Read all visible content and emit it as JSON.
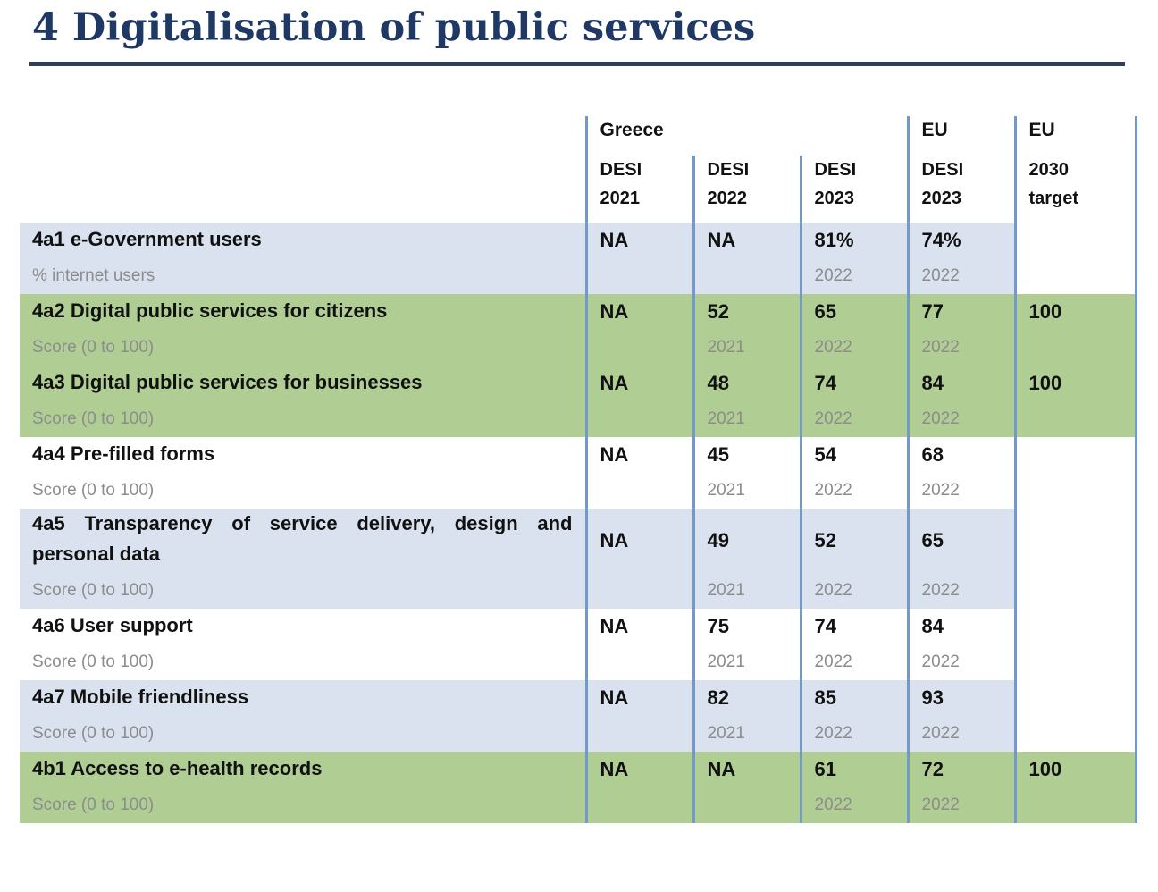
{
  "page": {
    "title": "4 Digitalisation of public services"
  },
  "table": {
    "group_headers": {
      "greece": "Greece",
      "eu": "EU",
      "eu_target": "EU"
    },
    "column_headers": [
      {
        "line1": "DESI",
        "line2": "2021"
      },
      {
        "line1": "DESI",
        "line2": "2022"
      },
      {
        "line1": "DESI",
        "line2": "2023"
      },
      {
        "line1": "DESI",
        "line2": "2023"
      },
      {
        "line1": "2030",
        "line2": "target"
      }
    ],
    "rows": [
      {
        "indicator": "4a1 e-Government users",
        "unit": "% internet users",
        "values": [
          "NA",
          "NA",
          "81%",
          "74%",
          ""
        ],
        "years": [
          "",
          "",
          "2022",
          "2022",
          ""
        ]
      },
      {
        "indicator": "4a2 Digital public services for citizens",
        "unit": "Score (0 to 100)",
        "values": [
          "NA",
          "52",
          "65",
          "77",
          "100"
        ],
        "years": [
          "",
          "2021",
          "2022",
          "2022",
          ""
        ]
      },
      {
        "indicator": "4a3 Digital public services for businesses",
        "unit": "Score (0 to 100)",
        "values": [
          "NA",
          "48",
          "74",
          "84",
          "100"
        ],
        "years": [
          "",
          "2021",
          "2022",
          "2022",
          ""
        ]
      },
      {
        "indicator": "4a4 Pre-filled forms",
        "unit": "Score (0 to 100)",
        "values": [
          "NA",
          "45",
          "54",
          "68",
          ""
        ],
        "years": [
          "",
          "2021",
          "2022",
          "2022",
          ""
        ]
      },
      {
        "indicator": "4a5 Transparency of service delivery, design and personal data",
        "unit": "Score (0 to 100)",
        "values": [
          "NA",
          "49",
          "52",
          "65",
          ""
        ],
        "years": [
          "",
          "2021",
          "2022",
          "2022",
          ""
        ]
      },
      {
        "indicator": "4a6 User support",
        "unit": "Score (0 to 100)",
        "values": [
          "NA",
          "75",
          "74",
          "84",
          ""
        ],
        "years": [
          "",
          "2021",
          "2022",
          "2022",
          ""
        ]
      },
      {
        "indicator": "4a7 Mobile friendliness",
        "unit": "Score (0 to 100)",
        "values": [
          "NA",
          "82",
          "85",
          "93",
          ""
        ],
        "years": [
          "",
          "2021",
          "2022",
          "2022",
          ""
        ]
      },
      {
        "indicator": "4b1 Access to e-health records",
        "unit": "Score (0 to 100)",
        "values": [
          "NA",
          "NA",
          "61",
          "72",
          "100"
        ],
        "years": [
          "",
          "",
          "2022",
          "2022",
          ""
        ]
      }
    ]
  }
}
